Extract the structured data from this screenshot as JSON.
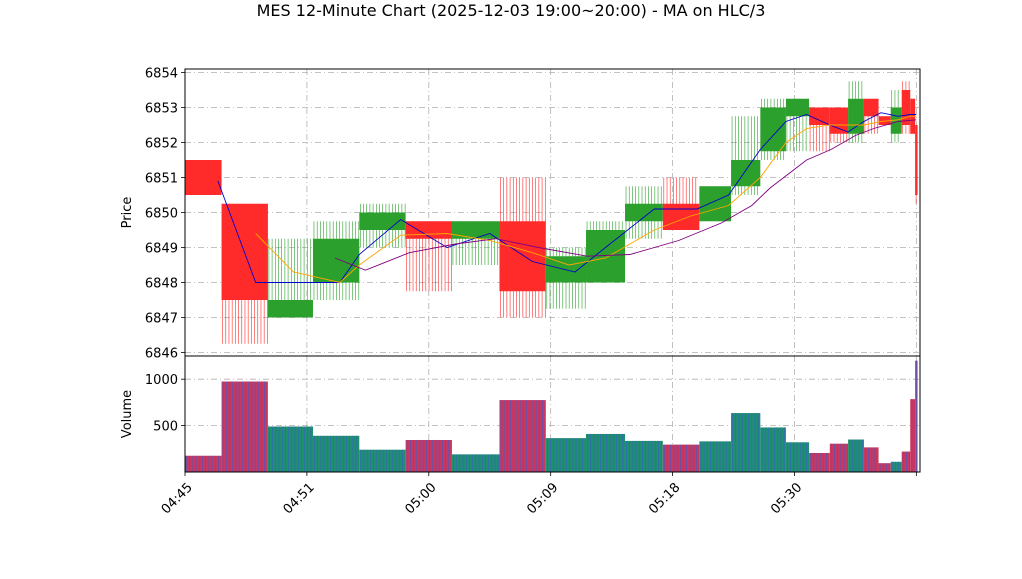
{
  "chart_data": {
    "type": "candlestick",
    "title": "MES 12-Minute Chart (2025-12-03 19:00~20:00) - MA on HLC/3",
    "price_panel": {
      "ylabel": "Price",
      "ylim": [
        6845.9,
        6854.1
      ],
      "yticks": [
        6846,
        6847,
        6848,
        6849,
        6850,
        6851,
        6852,
        6853,
        6854
      ],
      "grid": true
    },
    "volume_panel": {
      "ylabel": "Volume",
      "ylim": [
        0,
        1250
      ],
      "yticks": [
        500,
        1000
      ],
      "grid": true
    },
    "xlim": [
      0,
      60.3
    ],
    "xticks": [
      {
        "x": 0,
        "label": "04:45"
      },
      {
        "x": 10,
        "label": "04:51"
      },
      {
        "x": 20,
        "label": "05:00"
      },
      {
        "x": 30,
        "label": "05:09"
      },
      {
        "x": 40,
        "label": "05:18"
      },
      {
        "x": 50,
        "label": "05:30"
      },
      {
        "x": 60,
        "label": ""
      }
    ],
    "candles": [
      {
        "x0": 0,
        "x1": 3,
        "open": 6851.5,
        "high": 6851.5,
        "low": 6850.5,
        "close": 6850.5,
        "volume": 175,
        "color": "red"
      },
      {
        "x0": 3,
        "x1": 6.8,
        "open": 6850.25,
        "high": 6850.25,
        "low": 6846.25,
        "close": 6847.5,
        "volume": 975,
        "color": "red"
      },
      {
        "x0": 6.8,
        "x1": 10.5,
        "open": 6847.0,
        "high": 6849.25,
        "low": 6847.0,
        "close": 6847.5,
        "volume": 490,
        "color": "green"
      },
      {
        "x0": 10.5,
        "x1": 14.3,
        "open": 6848.0,
        "high": 6849.75,
        "low": 6847.5,
        "close": 6849.25,
        "volume": 390,
        "color": "green"
      },
      {
        "x0": 14.3,
        "x1": 18.1,
        "open": 6849.5,
        "high": 6850.25,
        "low": 6849.0,
        "close": 6850.0,
        "volume": 240,
        "color": "green"
      },
      {
        "x0": 18.1,
        "x1": 21.9,
        "open": 6849.75,
        "high": 6849.75,
        "low": 6847.75,
        "close": 6849.25,
        "volume": 345,
        "color": "red"
      },
      {
        "x0": 21.9,
        "x1": 25.8,
        "open": 6849.25,
        "high": 6849.75,
        "low": 6848.5,
        "close": 6849.75,
        "volume": 190,
        "color": "green"
      },
      {
        "x0": 25.8,
        "x1": 29.6,
        "open": 6849.75,
        "high": 6851.0,
        "low": 6847.0,
        "close": 6847.75,
        "volume": 775,
        "color": "red"
      },
      {
        "x0": 29.6,
        "x1": 32.9,
        "open": 6848.0,
        "high": 6849.0,
        "low": 6847.25,
        "close": 6848.75,
        "volume": 365,
        "color": "green"
      },
      {
        "x0": 32.9,
        "x1": 36.1,
        "open": 6848.0,
        "high": 6849.75,
        "low": 6848.0,
        "close": 6849.5,
        "volume": 410,
        "color": "green"
      },
      {
        "x0": 36.1,
        "x1": 39.2,
        "open": 6849.75,
        "high": 6850.75,
        "low": 6849.25,
        "close": 6850.25,
        "volume": 335,
        "color": "green"
      },
      {
        "x0": 39.2,
        "x1": 42.2,
        "open": 6850.25,
        "high": 6851.0,
        "low": 6849.5,
        "close": 6849.5,
        "volume": 295,
        "color": "red"
      },
      {
        "x0": 42.2,
        "x1": 44.8,
        "open": 6849.75,
        "high": 6850.75,
        "low": 6849.75,
        "close": 6850.75,
        "volume": 330,
        "color": "green"
      },
      {
        "x0": 44.8,
        "x1": 47.2,
        "open": 6850.75,
        "high": 6852.75,
        "low": 6850.5,
        "close": 6851.5,
        "volume": 635,
        "color": "green"
      },
      {
        "x0": 47.2,
        "x1": 49.3,
        "open": 6851.75,
        "high": 6853.25,
        "low": 6851.5,
        "close": 6853.0,
        "volume": 480,
        "color": "green"
      },
      {
        "x0": 49.3,
        "x1": 51.2,
        "open": 6852.75,
        "high": 6853.25,
        "low": 6851.75,
        "close": 6853.25,
        "volume": 320,
        "color": "green"
      },
      {
        "x0": 51.2,
        "x1": 52.9,
        "open": 6853.0,
        "high": 6853.0,
        "low": 6851.75,
        "close": 6852.5,
        "volume": 205,
        "color": "red"
      },
      {
        "x0": 52.9,
        "x1": 54.4,
        "open": 6853.0,
        "high": 6853.0,
        "low": 6852.0,
        "close": 6852.25,
        "volume": 305,
        "color": "red"
      },
      {
        "x0": 54.4,
        "x1": 55.7,
        "open": 6852.25,
        "high": 6853.75,
        "low": 6852.0,
        "close": 6853.25,
        "volume": 350,
        "color": "green"
      },
      {
        "x0": 55.7,
        "x1": 56.9,
        "open": 6853.25,
        "high": 6853.25,
        "low": 6852.25,
        "close": 6852.75,
        "volume": 265,
        "color": "red"
      },
      {
        "x0": 56.9,
        "x1": 57.9,
        "open": 6852.75,
        "high": 6852.75,
        "low": 6852.5,
        "close": 6852.5,
        "volume": 95,
        "color": "red"
      },
      {
        "x0": 57.9,
        "x1": 58.8,
        "open": 6852.25,
        "high": 6853.5,
        "low": 6852.0,
        "close": 6853.0,
        "volume": 110,
        "color": "green"
      },
      {
        "x0": 58.8,
        "x1": 59.5,
        "open": 6853.5,
        "high": 6853.75,
        "low": 6852.25,
        "close": 6852.5,
        "volume": 220,
        "color": "red"
      },
      {
        "x0": 59.5,
        "x1": 59.9,
        "open": 6853.25,
        "high": 6853.25,
        "low": 6852.25,
        "close": 6852.25,
        "volume": 785,
        "color": "red"
      },
      {
        "x0": 59.9,
        "x1": 60.1,
        "open": 6852.5,
        "high": 6852.5,
        "low": 6850.25,
        "close": 6850.5,
        "volume": 1200,
        "color": "red"
      }
    ],
    "ma_series": [
      {
        "color": "#0000cc",
        "points": [
          [
            2.7,
            6850.9
          ],
          [
            5.8,
            6848.0
          ],
          [
            8.9,
            6848.0
          ],
          [
            12.7,
            6848.0
          ],
          [
            14.3,
            6848.8
          ],
          [
            17.7,
            6849.8
          ],
          [
            21.5,
            6849.0
          ],
          [
            25.0,
            6849.4
          ],
          [
            28.5,
            6848.6
          ],
          [
            32.0,
            6848.3
          ],
          [
            34.5,
            6849.0
          ],
          [
            38.5,
            6850.1
          ],
          [
            42.0,
            6850.1
          ],
          [
            44.6,
            6850.5
          ],
          [
            47.2,
            6851.8
          ],
          [
            49.3,
            6852.6
          ],
          [
            51.0,
            6852.8
          ],
          [
            52.9,
            6852.5
          ],
          [
            54.4,
            6852.3
          ],
          [
            55.7,
            6852.6
          ],
          [
            57.1,
            6852.85
          ],
          [
            58.5,
            6852.75
          ],
          [
            59.5,
            6852.8
          ],
          [
            60.0,
            6852.8
          ]
        ]
      },
      {
        "color": "#ffa500",
        "points": [
          [
            5.8,
            6849.4
          ],
          [
            8.9,
            6848.3
          ],
          [
            12.7,
            6848.0
          ],
          [
            14.3,
            6848.5
          ],
          [
            17.7,
            6849.35
          ],
          [
            21.5,
            6849.4
          ],
          [
            25.0,
            6849.2
          ],
          [
            28.5,
            6848.85
          ],
          [
            31.5,
            6848.5
          ],
          [
            34.5,
            6848.7
          ],
          [
            38.5,
            6849.5
          ],
          [
            41.5,
            6849.9
          ],
          [
            44.6,
            6850.2
          ],
          [
            47.2,
            6851.0
          ],
          [
            49.3,
            6852.0
          ],
          [
            51.0,
            6852.4
          ],
          [
            52.9,
            6852.5
          ],
          [
            54.4,
            6852.5
          ],
          [
            55.7,
            6852.5
          ],
          [
            57.1,
            6852.6
          ],
          [
            58.5,
            6852.65
          ],
          [
            59.5,
            6852.75
          ],
          [
            60.0,
            6852.75
          ]
        ]
      },
      {
        "color": "#800080",
        "points": [
          [
            12.3,
            6848.7
          ],
          [
            14.8,
            6848.35
          ],
          [
            18.4,
            6848.85
          ],
          [
            22.2,
            6849.1
          ],
          [
            25.5,
            6849.25
          ],
          [
            29.0,
            6849.0
          ],
          [
            33.0,
            6848.75
          ],
          [
            36.5,
            6848.8
          ],
          [
            40.5,
            6849.2
          ],
          [
            44.0,
            6849.7
          ],
          [
            46.5,
            6850.2
          ],
          [
            48.0,
            6850.7
          ],
          [
            51.0,
            6851.5
          ],
          [
            53.0,
            6851.8
          ],
          [
            55.0,
            6852.2
          ],
          [
            56.5,
            6852.4
          ],
          [
            58.5,
            6852.6
          ],
          [
            60.0,
            6852.65
          ]
        ]
      }
    ]
  }
}
